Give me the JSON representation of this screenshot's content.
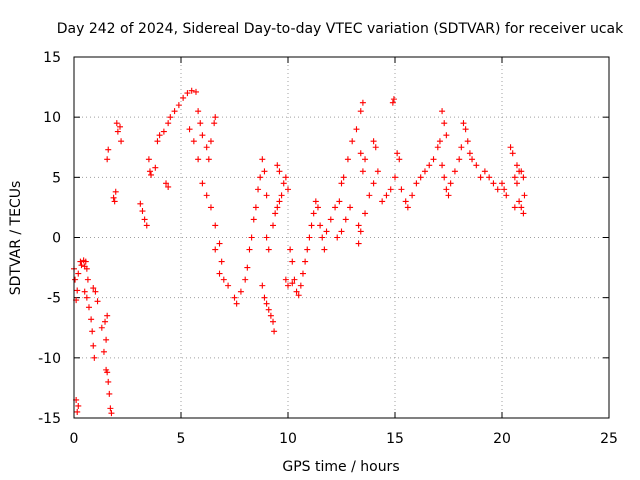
{
  "chart_data": {
    "type": "scatter",
    "title": "Day 242 of 2024, Sidereal Day-to-day VTEC variation (SDTVAR) for receiver ucak",
    "xlabel": "GPS time / hours",
    "ylabel": "SDTVAR / TECUs",
    "xlim": [
      0,
      25
    ],
    "ylim": [
      -15,
      15
    ],
    "xticks": [
      0,
      5,
      10,
      15,
      20,
      25
    ],
    "yticks": [
      -15,
      -10,
      -5,
      0,
      5,
      10,
      15
    ],
    "xtick_labels": [
      "0",
      "5",
      "10",
      "15",
      "20",
      "25"
    ],
    "ytick_labels": [
      "-15",
      "-10",
      "-5",
      "0",
      "5",
      "10",
      "15"
    ],
    "grid": true,
    "legend": "none",
    "marker": "plus",
    "color": "#ff0000",
    "series": [
      {
        "name": "SDTVAR",
        "points": [
          [
            0.0,
            -2.6
          ],
          [
            0.05,
            -3.5
          ],
          [
            0.1,
            -5.2
          ],
          [
            0.1,
            -13.5
          ],
          [
            0.15,
            -14.5
          ],
          [
            0.2,
            -14.0
          ],
          [
            0.15,
            -4.4
          ],
          [
            0.2,
            -3.0
          ],
          [
            0.3,
            -2.0
          ],
          [
            0.35,
            -2.3
          ],
          [
            0.45,
            -1.9
          ],
          [
            0.5,
            -2.4
          ],
          [
            0.55,
            -2.0
          ],
          [
            0.6,
            -2.6
          ],
          [
            0.65,
            -3.5
          ],
          [
            0.5,
            -4.5
          ],
          [
            0.6,
            -5.0
          ],
          [
            0.7,
            -5.8
          ],
          [
            0.8,
            -6.8
          ],
          [
            0.85,
            -7.8
          ],
          [
            0.9,
            -9.0
          ],
          [
            0.95,
            -10.0
          ],
          [
            0.9,
            -4.2
          ],
          [
            1.0,
            -4.5
          ],
          [
            1.1,
            -5.3
          ],
          [
            1.3,
            -7.5
          ],
          [
            1.4,
            -9.5
          ],
          [
            1.5,
            -11.0
          ],
          [
            1.55,
            -11.2
          ],
          [
            1.6,
            -12.0
          ],
          [
            1.65,
            -13.0
          ],
          [
            1.7,
            -14.2
          ],
          [
            1.75,
            -14.6
          ],
          [
            1.55,
            -6.5
          ],
          [
            1.45,
            -7.0
          ],
          [
            1.5,
            -8.5
          ],
          [
            1.55,
            6.5
          ],
          [
            1.6,
            7.3
          ],
          [
            1.9,
            3.0
          ],
          [
            1.95,
            3.8
          ],
          [
            1.85,
            3.3
          ],
          [
            2.0,
            9.5
          ],
          [
            2.05,
            8.8
          ],
          [
            2.15,
            9.2
          ],
          [
            2.2,
            8.0
          ],
          [
            3.1,
            2.8
          ],
          [
            3.2,
            2.2
          ],
          [
            3.3,
            1.5
          ],
          [
            3.4,
            1.0
          ],
          [
            3.5,
            6.5
          ],
          [
            3.55,
            5.5
          ],
          [
            3.6,
            5.2
          ],
          [
            3.8,
            5.8
          ],
          [
            3.9,
            8.0
          ],
          [
            4.0,
            8.5
          ],
          [
            4.2,
            8.8
          ],
          [
            4.4,
            9.5
          ],
          [
            4.3,
            4.5
          ],
          [
            4.4,
            4.2
          ],
          [
            4.5,
            10.0
          ],
          [
            4.7,
            10.5
          ],
          [
            4.9,
            11.0
          ],
          [
            5.1,
            11.6
          ],
          [
            5.3,
            12.0
          ],
          [
            5.5,
            12.2
          ],
          [
            5.7,
            12.1
          ],
          [
            5.8,
            10.5
          ],
          [
            5.9,
            9.5
          ],
          [
            6.0,
            8.5
          ],
          [
            6.2,
            7.5
          ],
          [
            6.3,
            6.5
          ],
          [
            6.4,
            8.0
          ],
          [
            6.55,
            9.5
          ],
          [
            6.6,
            10.0
          ],
          [
            5.4,
            9.0
          ],
          [
            5.6,
            8.0
          ],
          [
            5.8,
            6.5
          ],
          [
            6.0,
            4.5
          ],
          [
            6.2,
            3.5
          ],
          [
            6.4,
            2.5
          ],
          [
            6.6,
            1.0
          ],
          [
            6.8,
            -0.5
          ],
          [
            6.9,
            -2.0
          ],
          [
            7.0,
            -3.5
          ],
          [
            7.2,
            -4.0
          ],
          [
            6.6,
            -1.0
          ],
          [
            6.8,
            -3.0
          ],
          [
            7.5,
            -5.0
          ],
          [
            7.6,
            -5.5
          ],
          [
            7.8,
            -4.5
          ],
          [
            8.0,
            -3.5
          ],
          [
            8.1,
            -2.5
          ],
          [
            8.2,
            -1.0
          ],
          [
            8.3,
            0.0
          ],
          [
            8.4,
            1.5
          ],
          [
            8.5,
            2.5
          ],
          [
            8.6,
            4.0
          ],
          [
            8.7,
            5.0
          ],
          [
            8.8,
            6.5
          ],
          [
            8.9,
            5.5
          ],
          [
            9.0,
            3.5
          ],
          [
            8.8,
            -4.0
          ],
          [
            8.9,
            -5.0
          ],
          [
            9.0,
            -5.5
          ],
          [
            9.1,
            -6.0
          ],
          [
            9.2,
            -6.5
          ],
          [
            9.3,
            -7.0
          ],
          [
            9.35,
            -7.8
          ],
          [
            9.1,
            -1.0
          ],
          [
            9.0,
            0.0
          ],
          [
            9.3,
            1.0
          ],
          [
            9.4,
            2.0
          ],
          [
            9.5,
            2.5
          ],
          [
            9.6,
            3.0
          ],
          [
            9.7,
            3.5
          ],
          [
            9.8,
            4.5
          ],
          [
            9.9,
            5.0
          ],
          [
            10.0,
            4.0
          ],
          [
            9.5,
            6.0
          ],
          [
            9.6,
            5.5
          ],
          [
            10.1,
            -1.0
          ],
          [
            10.2,
            -2.0
          ],
          [
            10.3,
            -3.5
          ],
          [
            10.4,
            -4.5
          ],
          [
            10.5,
            -4.8
          ],
          [
            10.6,
            -4.0
          ],
          [
            10.7,
            -3.0
          ],
          [
            10.8,
            -2.0
          ],
          [
            9.9,
            -3.5
          ],
          [
            10.0,
            -4.0
          ],
          [
            10.2,
            -3.8
          ],
          [
            10.9,
            -1.0
          ],
          [
            11.0,
            0.0
          ],
          [
            11.1,
            1.0
          ],
          [
            11.2,
            2.0
          ],
          [
            11.3,
            3.0
          ],
          [
            11.4,
            2.5
          ],
          [
            11.5,
            1.0
          ],
          [
            11.6,
            0.0
          ],
          [
            11.7,
            -1.0
          ],
          [
            11.8,
            0.5
          ],
          [
            12.0,
            1.5
          ],
          [
            12.2,
            2.5
          ],
          [
            12.4,
            3.0
          ],
          [
            12.5,
            4.5
          ],
          [
            12.6,
            5.0
          ],
          [
            12.3,
            0.0
          ],
          [
            12.5,
            0.5
          ],
          [
            12.7,
            1.5
          ],
          [
            12.9,
            2.5
          ],
          [
            12.8,
            6.5
          ],
          [
            13.0,
            8.0
          ],
          [
            13.2,
            9.0
          ],
          [
            13.4,
            10.5
          ],
          [
            13.5,
            11.2
          ],
          [
            13.4,
            7.0
          ],
          [
            13.5,
            5.5
          ],
          [
            13.6,
            6.5
          ],
          [
            13.3,
            1.0
          ],
          [
            13.3,
            -0.5
          ],
          [
            13.4,
            0.5
          ],
          [
            13.6,
            2.0
          ],
          [
            13.8,
            3.5
          ],
          [
            14.0,
            4.5
          ],
          [
            14.2,
            5.5
          ],
          [
            14.0,
            8.0
          ],
          [
            14.1,
            7.5
          ],
          [
            14.4,
            3.0
          ],
          [
            14.6,
            3.5
          ],
          [
            14.8,
            4.0
          ],
          [
            15.0,
            5.0
          ],
          [
            14.9,
            11.2
          ],
          [
            14.95,
            11.5
          ],
          [
            15.1,
            7.0
          ],
          [
            15.2,
            6.5
          ],
          [
            15.3,
            4.0
          ],
          [
            15.5,
            3.0
          ],
          [
            15.6,
            2.5
          ],
          [
            15.8,
            3.5
          ],
          [
            16.0,
            4.5
          ],
          [
            16.2,
            5.0
          ],
          [
            16.4,
            5.5
          ],
          [
            16.6,
            6.0
          ],
          [
            16.8,
            6.5
          ],
          [
            17.0,
            7.5
          ],
          [
            17.1,
            8.0
          ],
          [
            17.2,
            10.5
          ],
          [
            17.3,
            9.5
          ],
          [
            17.4,
            8.5
          ],
          [
            17.2,
            6.0
          ],
          [
            17.3,
            5.0
          ],
          [
            17.4,
            4.0
          ],
          [
            17.5,
            3.5
          ],
          [
            17.6,
            4.5
          ],
          [
            17.8,
            5.5
          ],
          [
            18.0,
            6.5
          ],
          [
            18.1,
            7.5
          ],
          [
            18.2,
            9.5
          ],
          [
            18.3,
            9.0
          ],
          [
            18.4,
            8.0
          ],
          [
            18.5,
            7.0
          ],
          [
            18.6,
            6.5
          ],
          [
            18.8,
            6.0
          ],
          [
            19.0,
            5.0
          ],
          [
            19.2,
            5.5
          ],
          [
            19.4,
            5.0
          ],
          [
            19.6,
            4.5
          ],
          [
            19.8,
            4.0
          ],
          [
            20.0,
            4.5
          ],
          [
            20.1,
            4.0
          ],
          [
            20.2,
            3.5
          ],
          [
            20.4,
            7.5
          ],
          [
            20.5,
            7.0
          ],
          [
            20.6,
            5.0
          ],
          [
            20.7,
            4.5
          ],
          [
            20.8,
            3.0
          ],
          [
            20.9,
            2.5
          ],
          [
            21.0,
            2.0
          ],
          [
            20.6,
            2.5
          ],
          [
            20.9,
            5.5
          ],
          [
            21.0,
            5.0
          ],
          [
            21.05,
            3.5
          ],
          [
            20.7,
            6.0
          ],
          [
            20.8,
            5.5
          ]
        ]
      }
    ]
  }
}
